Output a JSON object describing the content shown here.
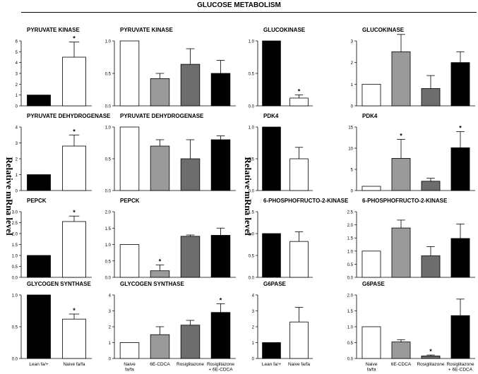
{
  "figure_title": "GLUCOSE METABOLISM",
  "y_axis_label": "Relative mRna level",
  "group_labels_left": [
    "Lean fa/+",
    "Naive fa/fa"
  ],
  "group_labels_right": [
    "Naive fa/fa",
    "6E-CDCA",
    "Rosiglitazone",
    "Rosiglitazone + 6E-CDCA"
  ],
  "colors": {
    "black": "#000000",
    "white": "#ffffff",
    "light_gray": "#9a9a9a",
    "dark_gray": "#6d6d6d"
  },
  "chart_data": [
    {
      "type": "bar",
      "title": "PYRUVATE KINASE",
      "categories": [
        "Lean fa/+",
        "Naive fa/fa"
      ],
      "values": [
        1.0,
        4.5
      ],
      "errors": [
        0,
        1.4
      ],
      "significant": [
        false,
        true
      ],
      "ylim": [
        0,
        6
      ],
      "yticks": [
        0,
        1,
        2,
        3,
        4,
        5,
        6
      ]
    },
    {
      "type": "bar",
      "title": "PYRUVATE KINASE",
      "categories": [
        "Naive fa/fa",
        "6E-CDCA",
        "Rosiglitazone",
        "Rosiglitazone + 6E-CDCA"
      ],
      "values": [
        1.0,
        0.42,
        0.64,
        0.5
      ],
      "errors": [
        0,
        0.08,
        0.24,
        0.2
      ],
      "significant": [
        false,
        false,
        false,
        false
      ],
      "ylim": [
        0,
        1.0
      ],
      "yticks": [
        0,
        0.5,
        1.0
      ]
    },
    {
      "type": "bar",
      "title": "GLUCOKINASE",
      "categories": [
        "Lean fa/+",
        "Naive fa/fa"
      ],
      "values": [
        1.0,
        0.12
      ],
      "errors": [
        0,
        0.05
      ],
      "significant": [
        false,
        true
      ],
      "ylim": [
        0,
        1.0
      ],
      "yticks": [
        0,
        0.5,
        1.0
      ]
    },
    {
      "type": "bar",
      "title": "GLUCOKINASE",
      "categories": [
        "Naive fa/fa",
        "6E-CDCA",
        "Rosiglitazone",
        "Rosiglitazone + 6E-CDCA"
      ],
      "values": [
        1.0,
        2.5,
        0.8,
        2.0
      ],
      "errors": [
        0,
        0.8,
        0.6,
        0.5
      ],
      "significant": [
        false,
        false,
        false,
        false
      ],
      "ylim": [
        0,
        3
      ],
      "yticks": [
        0,
        1,
        2,
        3
      ]
    },
    {
      "type": "bar",
      "title": "PYRUVATE  DEHYDROGENASE",
      "categories": [
        "Lean fa/+",
        "Naive fa/fa"
      ],
      "values": [
        1.0,
        2.8
      ],
      "errors": [
        0,
        0.7
      ],
      "significant": [
        false,
        true
      ],
      "ylim": [
        0,
        4
      ],
      "yticks": [
        0,
        1,
        2,
        3,
        4
      ]
    },
    {
      "type": "bar",
      "title": "PYRUVATE DEHYDROGENASE",
      "categories": [
        "Naive fa/fa",
        "6E-CDCA",
        "Rosiglitazone",
        "Rosiglitazone + 6E-CDCA"
      ],
      "values": [
        1.0,
        0.7,
        0.5,
        0.8
      ],
      "errors": [
        0,
        0.1,
        0.3,
        0.06
      ],
      "significant": [
        false,
        false,
        false,
        false
      ],
      "ylim": [
        0,
        1.0
      ],
      "yticks": [
        0,
        0.5,
        1.0
      ]
    },
    {
      "type": "bar",
      "title": "PDK4",
      "categories": [
        "Lean fa/+",
        "Naive fa/fa"
      ],
      "values": [
        1.0,
        0.5
      ],
      "errors": [
        0,
        0.18
      ],
      "significant": [
        false,
        false
      ],
      "ylim": [
        0,
        1.0
      ],
      "yticks": [
        0,
        0.5,
        1.0
      ]
    },
    {
      "type": "bar",
      "title": "PDK4",
      "categories": [
        "Naive fa/fa",
        "6E-CDCA",
        "Rosiglitazone",
        "Rosiglitazone + 6E-CDCA"
      ],
      "values": [
        1.0,
        7.6,
        2.2,
        10.1
      ],
      "errors": [
        0,
        4.5,
        0.7,
        3.8
      ],
      "significant": [
        false,
        true,
        false,
        true
      ],
      "ylim": [
        0,
        15
      ],
      "yticks": [
        0,
        5,
        10,
        15
      ]
    },
    {
      "type": "bar",
      "title": "PEPCK",
      "categories": [
        "Lean fa/+",
        "Naive fa/fa"
      ],
      "values": [
        1.0,
        2.55
      ],
      "errors": [
        0,
        0.25
      ],
      "significant": [
        false,
        true
      ],
      "ylim": [
        0,
        3.0
      ],
      "yticks": [
        0,
        0.5,
        1.0,
        1.5,
        2.0,
        2.5,
        3.0
      ]
    },
    {
      "type": "bar",
      "title": "PEPCK",
      "categories": [
        "Naive fa/fa",
        "6E-CDCA",
        "Rosiglitazone",
        "Rosiglitazone + 6E-CDCA"
      ],
      "values": [
        1.0,
        0.2,
        1.25,
        1.28
      ],
      "errors": [
        0,
        0.18,
        0.04,
        0.22
      ],
      "significant": [
        false,
        true,
        false,
        false
      ],
      "ylim": [
        0,
        2.0
      ],
      "yticks": [
        0,
        0.5,
        1.0,
        1.5,
        2.0
      ]
    },
    {
      "type": "bar",
      "title": "6-PHOSPHOFRUCTO-2-KINASE",
      "categories": [
        "Lean fa/+",
        "Naive fa/fa"
      ],
      "values": [
        1.0,
        0.82
      ],
      "errors": [
        0,
        0.22
      ],
      "significant": [
        false,
        false
      ],
      "ylim": [
        0,
        1.5
      ],
      "yticks": [
        0,
        0.5,
        1.0,
        1.5
      ]
    },
    {
      "type": "bar",
      "title": "6-PHOSPHOFRUCTO-2-KINASE",
      "categories": [
        "Naive fa/fa",
        "6E-CDCA",
        "Rosiglitazone",
        "Rosiglitazone + 6E-CDCA"
      ],
      "values": [
        1.0,
        1.88,
        0.82,
        1.48
      ],
      "errors": [
        0,
        0.3,
        0.35,
        0.55
      ],
      "significant": [
        false,
        false,
        false,
        false
      ],
      "ylim": [
        0,
        2.5
      ],
      "yticks": [
        0,
        0.5,
        1.0,
        1.5,
        2.0,
        2.5
      ]
    },
    {
      "type": "bar",
      "title": "GLYCOGEN SYNTHASE",
      "categories": [
        "Lean fa/+",
        "Naive fa/fa"
      ],
      "values": [
        1.0,
        0.62
      ],
      "errors": [
        0,
        0.08
      ],
      "significant": [
        false,
        true
      ],
      "ylim": [
        0,
        1.0
      ],
      "yticks": [
        0,
        0.5,
        1.0
      ]
    },
    {
      "type": "bar",
      "title": "GLYCOGEN SYNTHASE",
      "categories": [
        "Naive fa/fa",
        "6E-CDCA",
        "Rosiglitazone",
        "Rosiglitazone + 6E-CDCA"
      ],
      "values": [
        1.0,
        1.5,
        2.1,
        2.9
      ],
      "errors": [
        0,
        0.5,
        0.3,
        0.55
      ],
      "significant": [
        false,
        false,
        false,
        true
      ],
      "ylim": [
        0,
        4
      ],
      "yticks": [
        0,
        1,
        2,
        3,
        4
      ]
    },
    {
      "type": "bar",
      "title": "G6PASE",
      "categories": [
        "Lean fa/+",
        "Naive fa/fa"
      ],
      "values": [
        1.0,
        2.3
      ],
      "errors": [
        0,
        0.92
      ],
      "significant": [
        false,
        false
      ],
      "ylim": [
        0,
        4
      ],
      "yticks": [
        0,
        1,
        2,
        3,
        4
      ]
    },
    {
      "type": "bar",
      "title": "G6PASE",
      "categories": [
        "Naive fa/fa",
        "6E-CDCA",
        "Rosiglitazone",
        "Rosiglitazone + 6E-CDCA"
      ],
      "values": [
        1.0,
        0.52,
        0.08,
        1.35
      ],
      "errors": [
        0,
        0.07,
        0.03,
        0.52
      ],
      "significant": [
        false,
        false,
        true,
        false
      ],
      "ylim": [
        0,
        2.0
      ],
      "yticks": [
        0,
        0.5,
        1.0,
        1.5,
        2.0
      ]
    }
  ]
}
